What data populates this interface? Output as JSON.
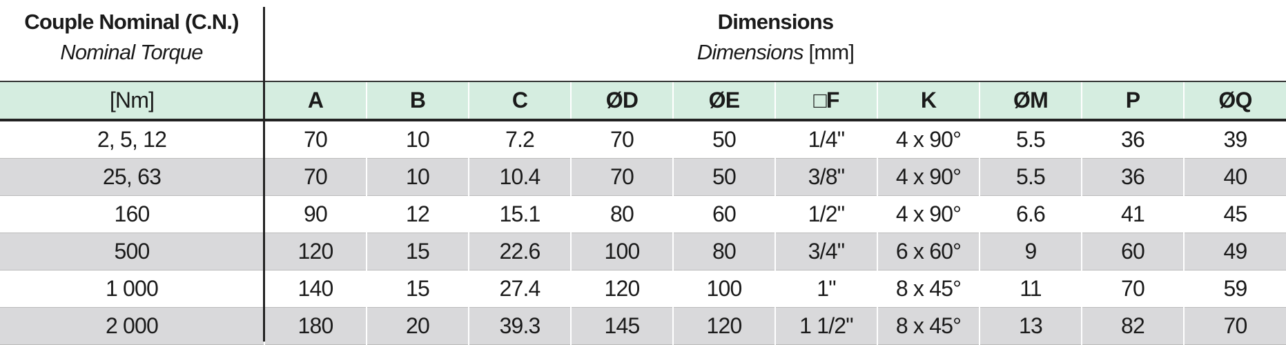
{
  "header": {
    "left": {
      "title": "Couple Nominal (C.N.)",
      "subtitle": "Nominal Torque"
    },
    "right": {
      "title": "Dimensions",
      "subtitle_italic": "Dimensions",
      "subtitle_unit": "[mm]"
    }
  },
  "table": {
    "columns": [
      "[Nm]",
      "A",
      "B",
      "C",
      "ØD",
      "ØE",
      "□F",
      "K",
      "ØM",
      "P",
      "ØQ"
    ],
    "rows": [
      [
        "2, 5, 12",
        "70",
        "10",
        "7.2",
        "70",
        "50",
        "1/4\"",
        "4 x 90°",
        "5.5",
        "36",
        "39"
      ],
      [
        "25, 63",
        "70",
        "10",
        "10.4",
        "70",
        "50",
        "3/8\"",
        "4 x 90°",
        "5.5",
        "36",
        "40"
      ],
      [
        "160",
        "90",
        "12",
        "15.1",
        "80",
        "60",
        "1/2\"",
        "4 x 90°",
        "6.6",
        "41",
        "45"
      ],
      [
        "500",
        "120",
        "15",
        "22.6",
        "100",
        "80",
        "3/4\"",
        "6 x 60°",
        "9",
        "60",
        "49"
      ],
      [
        "1 000",
        "140",
        "15",
        "27.4",
        "120",
        "100",
        "1\"",
        "8 x 45°",
        "11",
        "70",
        "59"
      ],
      [
        "2 000",
        "180",
        "20",
        "39.3",
        "145",
        "120",
        "1 1/2\"",
        "8 x 45°",
        "13",
        "82",
        "70"
      ]
    ]
  }
}
